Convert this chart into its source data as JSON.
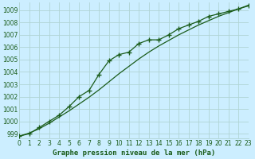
{
  "title": "Graphe pression niveau de la mer (hPa)",
  "bg_color": "#cceeff",
  "grid_color": "#b0d4d4",
  "line_color": "#1a5c1a",
  "x_min": 0,
  "x_max": 23,
  "y_min": 998.6,
  "y_max": 1009.6,
  "y_ticks": [
    999,
    1000,
    1001,
    1002,
    1003,
    1004,
    1005,
    1006,
    1007,
    1008,
    1009
  ],
  "series1_x": [
    0,
    1,
    2,
    3,
    4,
    5,
    6,
    7,
    8,
    9,
    10,
    11,
    12,
    13,
    14,
    15,
    16,
    17,
    18,
    19,
    20,
    21,
    22,
    23
  ],
  "series1_y": [
    998.8,
    999.0,
    999.5,
    1000.0,
    1000.5,
    1001.2,
    1002.0,
    1002.5,
    1003.8,
    1004.9,
    1005.4,
    1005.6,
    1006.3,
    1006.6,
    1006.6,
    1007.0,
    1007.5,
    1007.8,
    1008.1,
    1008.5,
    1008.7,
    1008.9,
    1009.1,
    1009.4
  ],
  "series2_x": [
    0,
    1,
    2,
    3,
    4,
    5,
    6,
    7,
    8,
    9,
    10,
    11,
    12,
    13,
    14,
    15,
    16,
    17,
    18,
    19,
    20,
    21,
    22,
    23
  ],
  "series2_y": [
    998.8,
    999.05,
    999.4,
    999.85,
    1000.35,
    1000.85,
    1001.4,
    1001.95,
    1002.55,
    1003.2,
    1003.85,
    1004.45,
    1005.05,
    1005.6,
    1006.1,
    1006.55,
    1007.0,
    1007.4,
    1007.8,
    1008.15,
    1008.5,
    1008.8,
    1009.1,
    1009.35
  ],
  "label_fontsize": 5.5,
  "xlabel_fontsize": 6.5
}
